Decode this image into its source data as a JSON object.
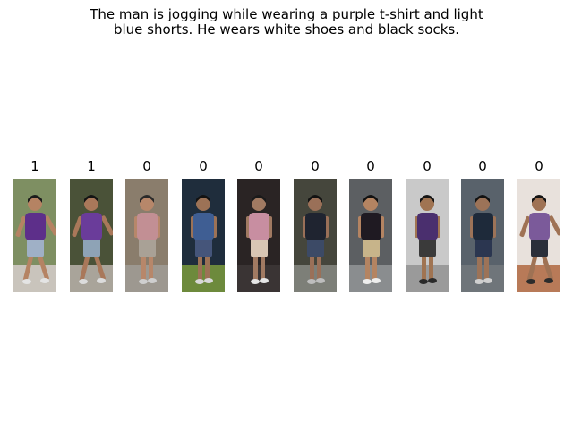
{
  "caption": {
    "line1": "The man is jogging while wearing a purple t-shirt and light",
    "line2": "blue shorts. He wears white shoes and black socks."
  },
  "gallery": {
    "items": [
      {
        "label": "1",
        "bg": "#7e8f62",
        "shirt": "#5d2f8a",
        "pants": "#9fb0c6",
        "skin": "#b58363",
        "hair": "#1b1b1b",
        "shoes": "#e4e4e4",
        "ground": "#c9c4bc",
        "pose": "run"
      },
      {
        "label": "1",
        "bg": "#4a5238",
        "shirt": "#6a3c9a",
        "pants": "#8ea3b6",
        "skin": "#a9785a",
        "hair": "#141414",
        "shoes": "#dcdcdc",
        "ground": "#a9a49a",
        "pose": "run"
      },
      {
        "label": "0",
        "bg": "#8a7d6c",
        "shirt": "#c28f94",
        "pants": "#a9a196",
        "skin": "#b7876a",
        "hair": "#2a2a2a",
        "shoes": "#cfcfcf",
        "ground": "#9d9890",
        "pose": "walk"
      },
      {
        "label": "0",
        "bg": "#1f2d3c",
        "shirt": "#3f5e93",
        "pants": "#45557a",
        "skin": "#9c7256",
        "hair": "#121212",
        "shoes": "#d8d8d8",
        "ground": "#6d8a3c",
        "pose": "walk"
      },
      {
        "label": "0",
        "bg": "#2a2424",
        "shirt": "#c88ea1",
        "pants": "#d8c6b4",
        "skin": "#a17a62",
        "hair": "#1a1a1a",
        "shoes": "#e6e6e6",
        "ground": "#3a3434",
        "pose": "walk"
      },
      {
        "label": "0",
        "bg": "#45463c",
        "shirt": "#1f2430",
        "pants": "#3c4a66",
        "skin": "#9a7058",
        "hair": "#121212",
        "shoes": "#bdbdbd",
        "ground": "#7d7f78",
        "pose": "walk"
      },
      {
        "label": "0",
        "bg": "#5c5f62",
        "shirt": "#1f1a22",
        "pants": "#c7b48a",
        "skin": "#b48462",
        "hair": "#121212",
        "shoes": "#eeeeee",
        "ground": "#8a8d8f",
        "pose": "walk"
      },
      {
        "label": "0",
        "bg": "#c9c9c9",
        "shirt": "#4a2f6e",
        "pants": "#3a3a3a",
        "skin": "#a07452",
        "hair": "#161616",
        "shoes": "#2a2a2a",
        "ground": "#9a9a9a",
        "pose": "walk"
      },
      {
        "label": "0",
        "bg": "#59626b",
        "shirt": "#1e2a3a",
        "pants": "#2b3650",
        "skin": "#9c7358",
        "hair": "#121212",
        "shoes": "#d0d0d0",
        "ground": "#6f757a",
        "pose": "walk"
      },
      {
        "label": "0",
        "bg": "#e8e1dc",
        "shirt": "#7b5a9a",
        "pants": "#2a2f3a",
        "skin": "#9f7254",
        "hair": "#131313",
        "shoes": "#2c2c2c",
        "ground": "#b87a58",
        "pose": "run"
      }
    ]
  }
}
